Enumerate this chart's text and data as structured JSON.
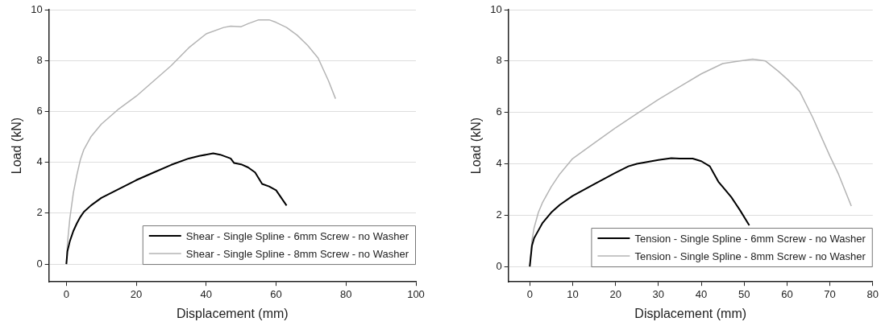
{
  "chart_data": [
    {
      "type": "line",
      "xlabel": "Displacement (mm)",
      "ylabel": "Load (kN)",
      "xlim": [
        -5,
        100
      ],
      "xticks": [
        0,
        20,
        40,
        60,
        80,
        100
      ],
      "ylim": [
        -0.7,
        10
      ],
      "yticks": [
        0,
        2,
        4,
        6,
        8,
        10
      ],
      "grid": "y",
      "legend": "bottom right",
      "marker": "none",
      "line_style": "solid",
      "series": [
        {
          "name": "Shear - Single Spline - 6mm Screw - no Washer",
          "color": "#000000",
          "x": [
            0,
            0.3,
            1,
            2,
            3,
            4,
            5,
            7,
            10,
            15,
            20,
            25,
            30,
            35,
            38,
            42,
            44,
            47,
            48,
            50,
            52,
            54,
            56,
            58,
            60,
            63
          ],
          "values": [
            0,
            0.5,
            0.9,
            1.3,
            1.6,
            1.85,
            2.05,
            2.3,
            2.6,
            2.95,
            3.3,
            3.6,
            3.9,
            4.15,
            4.25,
            4.35,
            4.3,
            4.15,
            3.97,
            3.92,
            3.8,
            3.6,
            3.15,
            3.05,
            2.9,
            2.3
          ]
        },
        {
          "name": "Shear - Single Spline - 8mm Screw - no Washer",
          "color": "#b4b4b4",
          "x": [
            0,
            0.3,
            1,
            2,
            3,
            4,
            5,
            7,
            10,
            15,
            20,
            25,
            30,
            35,
            40,
            45,
            47,
            50,
            52,
            55,
            58,
            60,
            63,
            66,
            69,
            72,
            75,
            77
          ],
          "values": [
            0,
            0.8,
            1.8,
            2.8,
            3.5,
            4.1,
            4.5,
            5,
            5.5,
            6.1,
            6.6,
            7.2,
            7.8,
            8.5,
            9.05,
            9.3,
            9.35,
            9.33,
            9.45,
            9.6,
            9.6,
            9.5,
            9.3,
            9.0,
            8.6,
            8.1,
            7.2,
            6.5
          ]
        }
      ]
    },
    {
      "type": "line",
      "xlabel": "Displacement (mm)",
      "ylabel": "Load (kN)",
      "xlim": [
        -5,
        80
      ],
      "xticks": [
        0,
        10,
        20,
        30,
        40,
        50,
        60,
        70,
        80
      ],
      "ylim": [
        -0.6,
        10
      ],
      "yticks": [
        0,
        2,
        4,
        6,
        8,
        10
      ],
      "grid": "y",
      "legend": "bottom right",
      "marker": "none",
      "line_style": "solid",
      "series": [
        {
          "name": "Tension - Single Spline - 6mm Screw - no Washer",
          "color": "#000000",
          "x": [
            0,
            0.5,
            1,
            2,
            3,
            5,
            7,
            10,
            15,
            20,
            23,
            25,
            30,
            33,
            35,
            38,
            40,
            42,
            43,
            44,
            45,
            47,
            49,
            51.2
          ],
          "values": [
            0,
            0.8,
            1.1,
            1.4,
            1.7,
            2.1,
            2.4,
            2.75,
            3.2,
            3.65,
            3.9,
            4.0,
            4.15,
            4.22,
            4.2,
            4.2,
            4.1,
            3.9,
            3.6,
            3.3,
            3.1,
            2.7,
            2.2,
            1.6
          ]
        },
        {
          "name": "Tension - Single Spline - 8mm Screw - no Washer",
          "color": "#b4b4b4",
          "x": [
            0,
            0.5,
            1,
            2,
            3,
            5,
            7,
            10,
            15,
            20,
            25,
            30,
            35,
            40,
            45,
            48,
            52,
            55,
            58,
            60,
            63,
            66,
            70,
            72,
            75
          ],
          "values": [
            0,
            1,
            1.5,
            2.1,
            2.5,
            3.1,
            3.6,
            4.2,
            4.8,
            5.4,
            5.95,
            6.5,
            7,
            7.5,
            7.9,
            7.98,
            8.07,
            8.0,
            7.6,
            7.3,
            6.8,
            5.8,
            4.3,
            3.6,
            2.35
          ]
        }
      ]
    }
  ]
}
